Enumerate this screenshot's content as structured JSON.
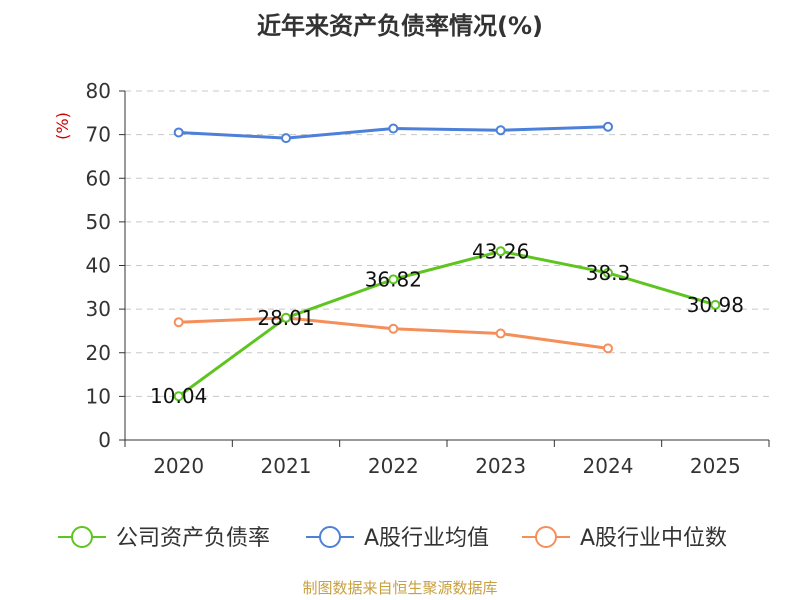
{
  "chart_data": {
    "type": "line",
    "title": "近年来资产负债率情况(%)",
    "ylabel": "(%)",
    "ylim": [
      0,
      80
    ],
    "yticks": [
      0,
      10,
      20,
      30,
      40,
      50,
      60,
      70,
      80
    ],
    "categories": [
      "2020",
      "2021",
      "2022",
      "2023",
      "2024",
      "2025"
    ],
    "grid": "horizontal dashed",
    "legend_position": "bottom",
    "series": [
      {
        "name": "公司资产负债率",
        "color": "#5ec520",
        "values": [
          10.04,
          28.01,
          36.82,
          43.26,
          38.3,
          30.98
        ],
        "labels": [
          "10.04",
          "28.01",
          "36.82",
          "43.26",
          "38.3",
          "30.98"
        ]
      },
      {
        "name": "A股行业均值",
        "color": "#4d80d8",
        "values": [
          70.5,
          69.2,
          71.4,
          71.0,
          71.8,
          null
        ]
      },
      {
        "name": "A股行业中位数",
        "color": "#f58f5a",
        "values": [
          27.0,
          28.0,
          25.5,
          24.4,
          21.0,
          null
        ]
      }
    ],
    "source": "制图数据来自恒生聚源数据库"
  }
}
